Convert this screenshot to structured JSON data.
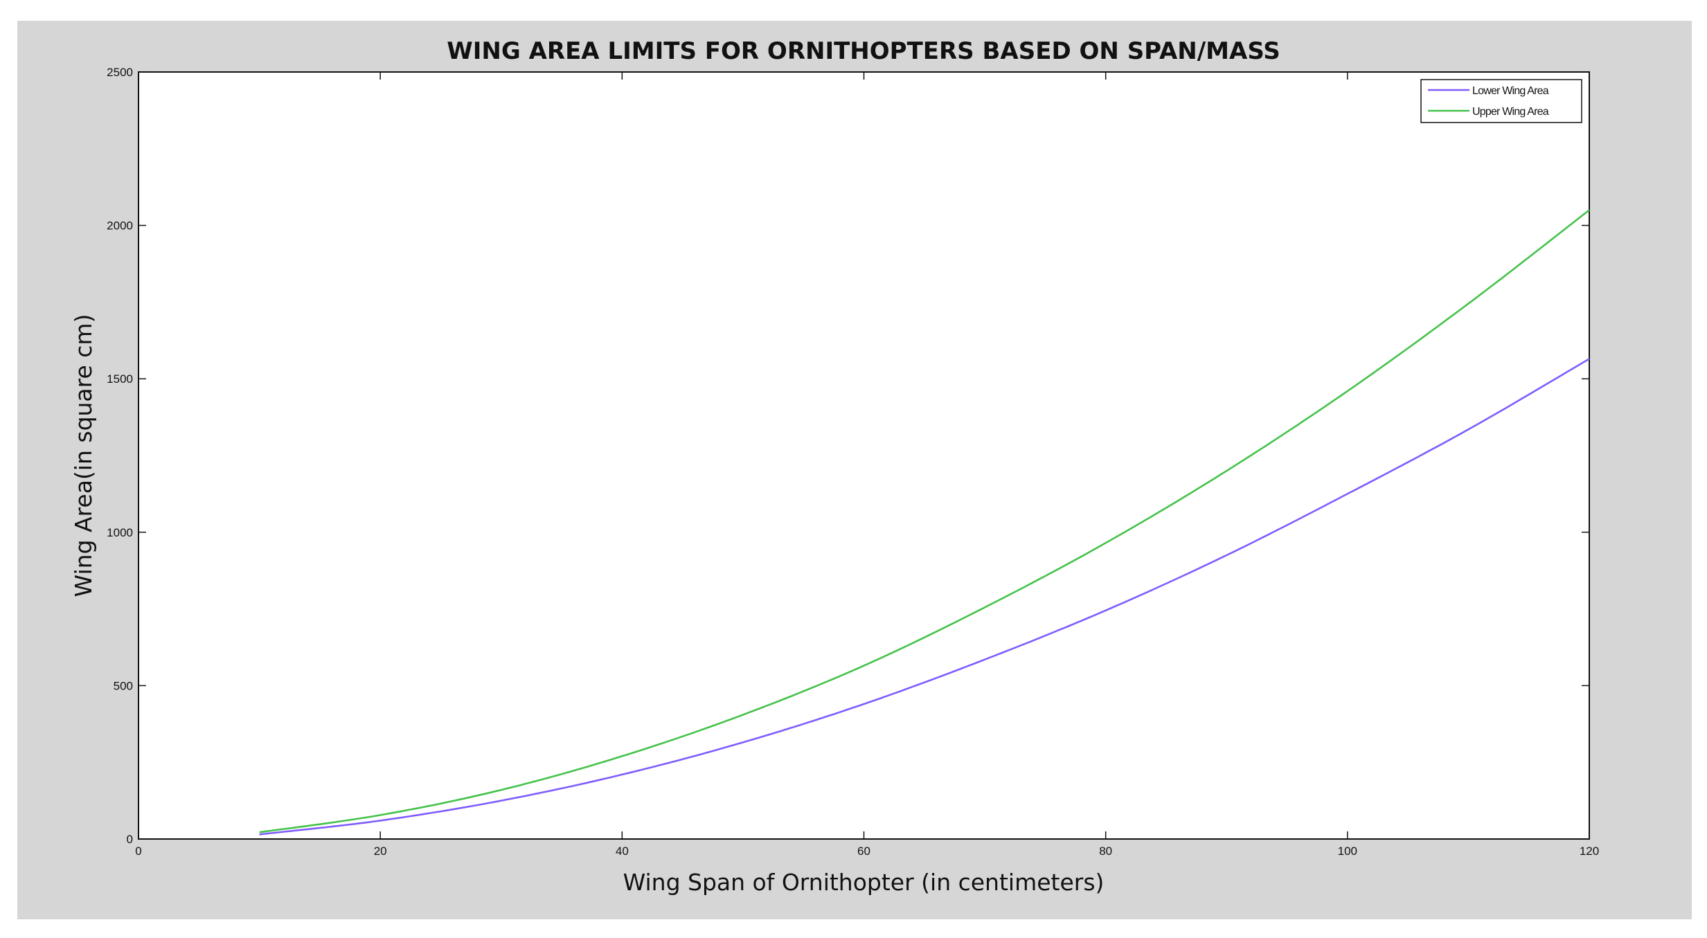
{
  "chart_data": {
    "type": "line",
    "title": "WING AREA LIMITS FOR ORNITHOPTERS BASED ON SPAN/MASS",
    "xlabel": "Wing Span of Ornithopter (in centimeters)",
    "ylabel": "Wing Area(in square cm)",
    "xlim": [
      0,
      120
    ],
    "ylim": [
      0,
      2500
    ],
    "xticks": [
      0,
      20,
      40,
      60,
      80,
      100,
      120
    ],
    "yticks": [
      0,
      500,
      1000,
      1500,
      2000,
      2500
    ],
    "xtick_labels": [
      "0",
      "20",
      "40",
      "60",
      "80",
      "100",
      "120"
    ],
    "ytick_labels": [
      "0",
      "500",
      "1000",
      "1500",
      "2000",
      "2500"
    ],
    "grid": false,
    "legend_position": "top-right",
    "series": [
      {
        "name": "Lower Wing Area",
        "color": "#7f5cff",
        "x": [
          10,
          20,
          30,
          40,
          50,
          60,
          70,
          80,
          90,
          100,
          110,
          120
        ],
        "y": [
          15,
          60,
          125,
          210,
          315,
          440,
          585,
          745,
          925,
          1125,
          1335,
          1565
        ]
      },
      {
        "name": "Upper Wing Area",
        "color": "#44c24a",
        "x": [
          10,
          20,
          30,
          40,
          50,
          60,
          70,
          80,
          90,
          100,
          110,
          120
        ],
        "y": [
          22,
          78,
          160,
          270,
          405,
          565,
          755,
          965,
          1200,
          1460,
          1745,
          2050
        ]
      }
    ]
  }
}
